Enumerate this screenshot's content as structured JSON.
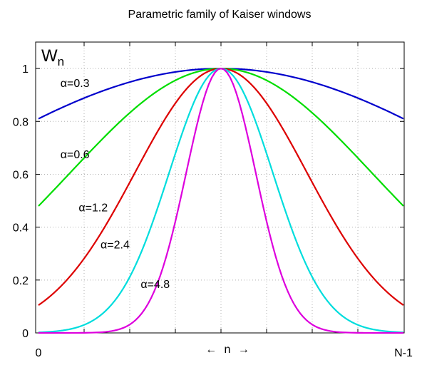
{
  "chart_data": {
    "type": "line",
    "title": "Parametric family of Kaiser windows",
    "ylabel": "W",
    "ylabel_sub": "n",
    "xlabel": "← n →",
    "x_tick_labels": [
      "0",
      "N-1"
    ],
    "x_range": [
      0,
      1
    ],
    "ylim": [
      0,
      1.1
    ],
    "y_ticks": [
      0,
      0.2,
      0.4,
      0.6,
      0.8,
      1
    ],
    "y_tick_labels": [
      "0",
      "0.2",
      "0.4",
      "0.6",
      "0.8",
      "1"
    ],
    "grid": true,
    "x_grid_count": 8,
    "series": [
      {
        "name": "α=0.3",
        "alpha": 0.3,
        "color": "#0000cc",
        "endpoint": 0.81
      },
      {
        "name": "α=0.6",
        "alpha": 0.6,
        "color": "#00dd00",
        "endpoint": 0.48
      },
      {
        "name": "α=1.2",
        "alpha": 1.2,
        "color": "#dd0000",
        "endpoint": 0.105
      },
      {
        "name": "α=2.4",
        "alpha": 2.4,
        "color": "#00dddd",
        "endpoint": 0.002
      },
      {
        "name": "α=4.8",
        "alpha": 4.8,
        "color": "#dd00dd",
        "endpoint": 0.0
      }
    ]
  }
}
